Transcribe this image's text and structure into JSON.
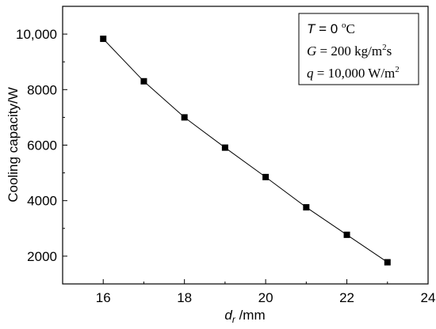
{
  "chart_data": {
    "type": "line",
    "title": "",
    "xlabel_main": "d",
    "xlabel_sub": "r",
    "xlabel_unit": " /mm",
    "ylabel": "Cooling capacity/W",
    "x": [
      16,
      17,
      18,
      19,
      20,
      21,
      22,
      23
    ],
    "series": [
      {
        "values": [
          9830,
          8300,
          7000,
          5910,
          4850,
          3760,
          2770,
          1780
        ]
      }
    ],
    "xlim": [
      15,
      24
    ],
    "ylim": [
      1000,
      11000
    ],
    "xticks": [
      16,
      18,
      20,
      22,
      24
    ],
    "xtick_labels": [
      "16",
      "18",
      "20",
      "22",
      "24"
    ],
    "yticks": [
      2000,
      4000,
      6000,
      8000,
      10000
    ],
    "ytick_labels": [
      "2000",
      "4000",
      "6000",
      "8000",
      "10,000"
    ],
    "grid": false,
    "marker": "square",
    "color": "#000000",
    "annotation": {
      "placement": "top-right",
      "line1": {
        "var": "T",
        "text": " = 0 ",
        "sup": "o",
        "unit": "C"
      },
      "line2": {
        "var": "G",
        "text": " = 200 kg/m",
        "sup": "2",
        "unit": "s"
      },
      "line3": {
        "var": "q",
        "text": " = 10,000 W/m",
        "sup": "2",
        "unit": ""
      }
    }
  }
}
